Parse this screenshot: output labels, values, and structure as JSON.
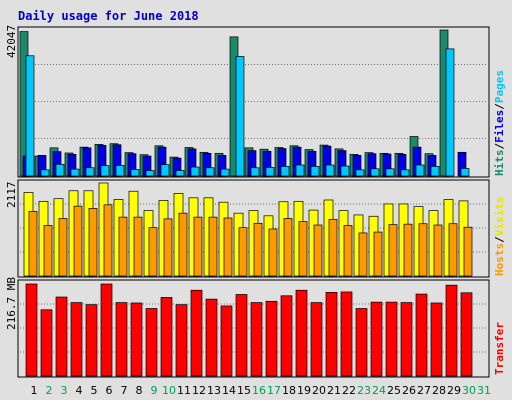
{
  "chart_data": {
    "type": "bar",
    "title": "Daily usage for June 2018",
    "days": [
      "1",
      "2",
      "3",
      "4",
      "5",
      "6",
      "7",
      "8",
      "9",
      "10",
      "11",
      "12",
      "13",
      "14",
      "15",
      "16",
      "17",
      "18",
      "19",
      "20",
      "21",
      "22",
      "23",
      "24",
      "25",
      "26",
      "27",
      "28",
      "29",
      "30",
      "31"
    ],
    "weekend_days": [
      "2",
      "3",
      "9",
      "10",
      "16",
      "17",
      "23",
      "24",
      "30",
      "31"
    ],
    "colors": {
      "hits": "#1a8a6a",
      "files": "#0000e6",
      "pages": "#00c8ff",
      "visits": "#ffff00",
      "hosts": "#ff9900",
      "transfer": "#ff0000",
      "weekday_label": "#000000",
      "weekend_label": "#00a050"
    },
    "panels": {
      "hits": {
        "label_max": "42047",
        "side_labels": [
          "Hits",
          "/",
          "Files",
          "/",
          "Pages"
        ],
        "series": [
          {
            "name": "Hits",
            "values": [
              42047,
              5800,
              8200,
              6700,
              8400,
              9200,
              9400,
              6800,
              6200,
              8800,
              5500,
              8300,
              6900,
              6600,
              40500,
              8200,
              7800,
              8300,
              8800,
              7700,
              9000,
              7900,
              6300,
              6800,
              6600,
              6600,
              11500,
              6500,
              42500,
              0,
              0
            ]
          },
          {
            "name": "Files",
            "values": [
              5800,
              6000,
              7100,
              6300,
              8200,
              8900,
              9100,
              6500,
              5800,
              8400,
              5200,
              7900,
              6600,
              6000,
              0,
              7400,
              7200,
              8000,
              8400,
              7200,
              8700,
              7400,
              6000,
              6500,
              6400,
              6300,
              8400,
              6000,
              0,
              6900,
              0
            ]
          },
          {
            "name": "Pages",
            "values": [
              35000,
              1800,
              3400,
              2000,
              2400,
              3000,
              3100,
              1900,
              1600,
              3300,
              1600,
              2600,
              2400,
              2000,
              34800,
              2400,
              2500,
              2800,
              3200,
              2800,
              3200,
              2900,
              1800,
              2100,
              2100,
              1800,
              3200,
              2800,
              37000,
              2200,
              0
            ]
          }
        ]
      },
      "visits": {
        "label_max": "2117",
        "side_labels": [
          "Hosts",
          "/",
          "Visits"
        ],
        "series": [
          {
            "name": "Visits",
            "values": [
              1900,
              1700,
              1760,
              1940,
              1940,
              2117,
              1740,
              1930,
              1490,
              1720,
              1880,
              1780,
              1780,
              1680,
              1430,
              1490,
              1370,
              1690,
              1700,
              1500,
              1730,
              1490,
              1390,
              1360,
              1640,
              1640,
              1580,
              1490,
              1740,
              1710,
              0
            ]
          },
          {
            "name": "Hosts",
            "values": [
              1470,
              1150,
              1310,
              1590,
              1540,
              1620,
              1340,
              1340,
              1100,
              1300,
              1430,
              1340,
              1340,
              1320,
              1100,
              1200,
              1070,
              1310,
              1240,
              1160,
              1290,
              1150,
              980,
              1000,
              1170,
              1180,
              1190,
              1160,
              1190,
              1110,
              0
            ]
          }
        ]
      },
      "transfer": {
        "label_max": "216.7 MB",
        "side_labels": [
          "Transfer"
        ],
        "series": [
          {
            "name": "Transfer",
            "values": [
              216.7,
              156,
              186,
              173,
              168,
              216.7,
              173,
              172,
              159,
              185,
              168,
              202,
              181,
              165,
              192,
              173,
              176,
              189,
              202,
              173,
              197,
              198,
              159,
              174,
              174,
              173,
              193,
              172,
              214,
              196,
              0
            ]
          }
        ]
      }
    }
  }
}
